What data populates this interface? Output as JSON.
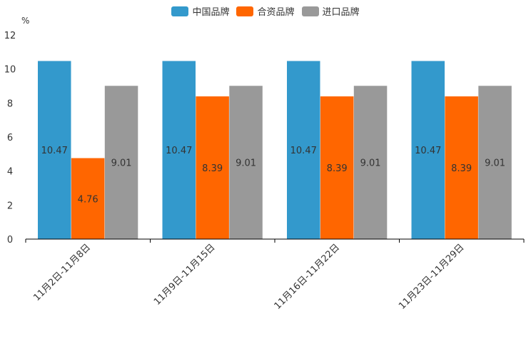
{
  "chart_data": {
    "type": "bar",
    "ylabel": "%",
    "ylim": [
      0,
      12
    ],
    "yticks": [
      0,
      2,
      4,
      6,
      8,
      10,
      12
    ],
    "categories": [
      "11月2日-11月8日",
      "11月9日-11月15日",
      "11月16日-11月22日",
      "11月23日-11月29日"
    ],
    "series": [
      {
        "name": "中国品牌",
        "color": "#3399cc",
        "values": [
          10.47,
          10.47,
          10.47,
          10.47
        ],
        "labels": [
          "10.47",
          "10.47",
          "10.47",
          "10.47"
        ]
      },
      {
        "name": "合资品牌",
        "color": "#ff6600",
        "values": [
          4.76,
          8.39,
          8.39,
          8.39
        ],
        "labels": [
          "4.76",
          "8.39",
          "8.39",
          "8.39"
        ]
      },
      {
        "name": "进口品牌",
        "color": "#999999",
        "values": [
          9.01,
          9.01,
          9.01,
          9.01
        ],
        "labels": [
          "9.01",
          "9.01",
          "9.01",
          "9.01"
        ]
      }
    ],
    "legend_position": "top-center"
  }
}
